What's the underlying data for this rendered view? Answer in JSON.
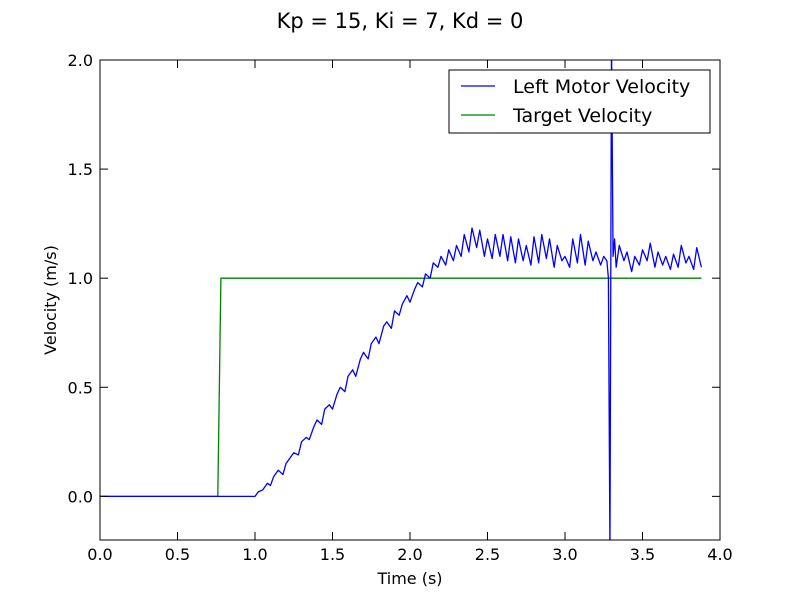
{
  "chart_data": {
    "type": "line",
    "title": "Kp = 15, Ki = 7, Kd = 0",
    "xlabel": "Time (s)",
    "ylabel": "Velocity (m/s)",
    "xlim": [
      0.0,
      4.0
    ],
    "ylim": [
      -0.2,
      2.0
    ],
    "xticks": [
      "0.0",
      "0.5",
      "1.0",
      "1.5",
      "2.0",
      "2.5",
      "3.0",
      "3.5",
      "4.0"
    ],
    "yticks": [
      "0.0",
      "0.5",
      "1.0",
      "1.5",
      "2.0"
    ],
    "xtick_values": [
      0.0,
      0.5,
      1.0,
      1.5,
      2.0,
      2.5,
      3.0,
      3.5,
      4.0
    ],
    "ytick_values": [
      0.0,
      0.5,
      1.0,
      1.5,
      2.0
    ],
    "grid": false,
    "legend_position": "top-right",
    "series": [
      {
        "name": "Left Motor Velocity",
        "color": "#0000ff",
        "x": [
          0.0,
          0.5,
          1.0,
          1.02,
          1.05,
          1.08,
          1.1,
          1.12,
          1.15,
          1.18,
          1.2,
          1.22,
          1.25,
          1.28,
          1.3,
          1.33,
          1.35,
          1.38,
          1.4,
          1.43,
          1.45,
          1.48,
          1.5,
          1.53,
          1.55,
          1.58,
          1.6,
          1.63,
          1.65,
          1.68,
          1.7,
          1.73,
          1.75,
          1.78,
          1.8,
          1.83,
          1.85,
          1.88,
          1.9,
          1.93,
          1.95,
          1.98,
          2.0,
          2.03,
          2.05,
          2.08,
          2.1,
          2.13,
          2.15,
          2.18,
          2.2,
          2.23,
          2.25,
          2.28,
          2.3,
          2.33,
          2.35,
          2.38,
          2.4,
          2.43,
          2.45,
          2.48,
          2.5,
          2.53,
          2.55,
          2.58,
          2.6,
          2.63,
          2.65,
          2.68,
          2.7,
          2.73,
          2.75,
          2.78,
          2.8,
          2.83,
          2.85,
          2.88,
          2.9,
          2.93,
          2.95,
          2.98,
          3.0,
          3.03,
          3.05,
          3.08,
          3.1,
          3.13,
          3.15,
          3.18,
          3.2,
          3.23,
          3.25,
          3.27,
          3.28,
          3.29,
          3.3,
          3.31,
          3.32,
          3.33,
          3.35,
          3.38,
          3.4,
          3.43,
          3.45,
          3.48,
          3.5,
          3.53,
          3.55,
          3.58,
          3.6,
          3.63,
          3.65,
          3.68,
          3.7,
          3.73,
          3.75,
          3.78,
          3.8,
          3.83,
          3.85,
          3.88
        ],
        "y": [
          0.0,
          0.0,
          0.0,
          0.02,
          0.03,
          0.06,
          0.05,
          0.09,
          0.12,
          0.1,
          0.15,
          0.17,
          0.2,
          0.19,
          0.25,
          0.27,
          0.26,
          0.32,
          0.35,
          0.33,
          0.4,
          0.42,
          0.4,
          0.47,
          0.5,
          0.48,
          0.55,
          0.58,
          0.55,
          0.63,
          0.66,
          0.63,
          0.7,
          0.73,
          0.7,
          0.78,
          0.8,
          0.77,
          0.85,
          0.83,
          0.88,
          0.92,
          0.89,
          0.95,
          0.98,
          0.96,
          1.02,
          1.0,
          1.07,
          1.05,
          1.1,
          1.06,
          1.13,
          1.08,
          1.15,
          1.1,
          1.2,
          1.12,
          1.23,
          1.14,
          1.22,
          1.1,
          1.18,
          1.09,
          1.2,
          1.1,
          1.2,
          1.08,
          1.19,
          1.07,
          1.18,
          1.08,
          1.15,
          1.06,
          1.19,
          1.07,
          1.2,
          1.09,
          1.18,
          1.05,
          1.15,
          1.08,
          1.1,
          1.05,
          1.18,
          1.07,
          1.2,
          1.06,
          1.17,
          1.08,
          1.12,
          1.06,
          1.1,
          1.08,
          1.0,
          -0.25,
          2.1,
          1.1,
          1.18,
          1.05,
          1.15,
          1.08,
          1.12,
          1.03,
          1.1,
          1.06,
          1.13,
          1.08,
          1.16,
          1.05,
          1.12,
          1.06,
          1.1,
          1.04,
          1.11,
          1.05,
          1.15,
          1.07,
          1.1,
          1.04,
          1.14,
          1.05
        ]
      },
      {
        "name": "Target Velocity",
        "color": "#008000",
        "x": [
          0.0,
          0.76,
          0.78,
          3.88
        ],
        "y": [
          0.0,
          0.0,
          1.0,
          1.0
        ]
      }
    ]
  }
}
